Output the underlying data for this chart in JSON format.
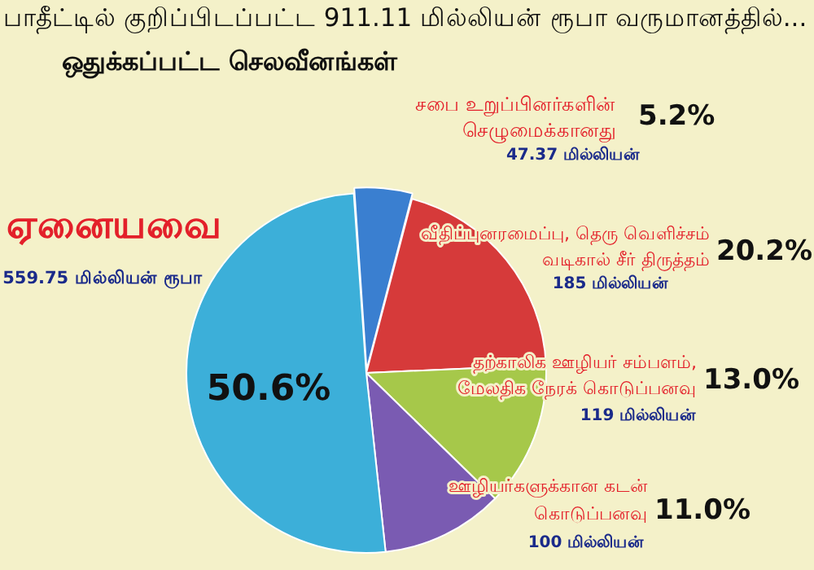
{
  "chart_data": {
    "type": "pie",
    "title": "பாதீட்டில் குறிப்பிடப்பட்ட 911.11 மில்லியன் ரூபா வருமானத்தில்...",
    "subtitle": "ஒதுக்கப்பட்ட செலவீனங்கள்",
    "categories": [
      "சபை உறுப்பினர்களின் செழுமைக்கானது",
      "வீதிப்புனரமைப்பு, தெரு வெளிச்சம் வடிகால் சீர் திருத்தம்",
      "தற்காலிக ஊழியர் சம்பளம், மேலதிக நேரக் கொடுப்பனவு",
      "ஊழியர்களுக்கான கடன் கொடுப்பனவு",
      "ஏனையவை"
    ],
    "values": [
      5.2,
      20.2,
      13.0,
      11.0,
      50.6
    ],
    "colors": [
      "#3a7fd0",
      "#d63a3a",
      "#a6c84a",
      "#7a5bb2",
      "#3cafd9"
    ],
    "value_labels": [
      "5.2%",
      "20.2%",
      "13.0%",
      "11.0%",
      "50.6%"
    ],
    "annotations": [
      "47.37 மில்லியன்",
      "185 மில்லியன்",
      "119 மில்லியன்",
      "100 மில்லியன்",
      "559.75 மில்லியன் ரூபா"
    ],
    "legend": false
  }
}
